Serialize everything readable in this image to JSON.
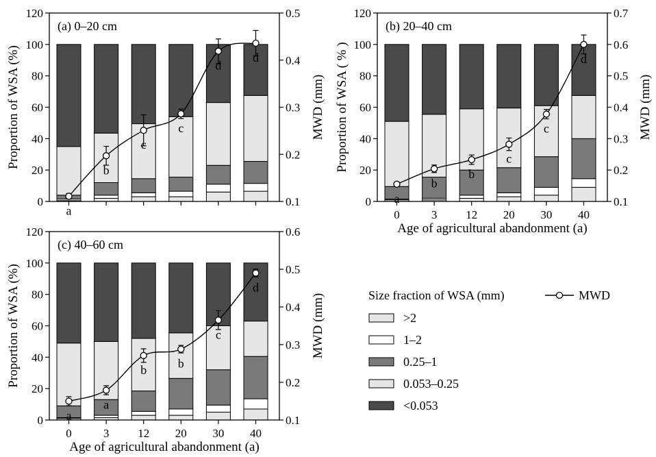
{
  "chart_data": [
    {
      "type": "bar",
      "panel_label": "(a) 0–20 cm",
      "categories": [
        "0",
        "3",
        "12",
        "20",
        "30",
        "40"
      ],
      "ylabel": "Proportion of WSA (%)",
      "ylabel_right": "MWD (mm)",
      "xlabel": "",
      "ylim": [
        0,
        120
      ],
      "yticks": [
        0,
        20,
        40,
        60,
        80,
        100,
        120
      ],
      "ylim_right": [
        0.1,
        0.5
      ],
      "yticks_right": [
        "0.1",
        "0.2",
        "0.3",
        "0.4",
        "0.5"
      ],
      "series": [
        {
          "name": ">2",
          "values": [
            0.5,
            2,
            3,
            3,
            6,
            6.5
          ]
        },
        {
          "name": "1–2",
          "values": [
            1,
            2,
            2.5,
            3.5,
            5,
            5
          ]
        },
        {
          "name": "0.25–1",
          "values": [
            2.5,
            8,
            9,
            9,
            12,
            14
          ]
        },
        {
          "name": "0.053–0.25",
          "values": [
            31,
            31.5,
            35,
            38.5,
            40,
            42
          ]
        },
        {
          "name": "<0.053",
          "values": [
            65,
            56.5,
            50.5,
            46,
            37,
            32.5
          ]
        }
      ],
      "line": {
        "name": "MWD",
        "values": [
          0.111,
          0.197,
          0.251,
          0.286,
          0.419,
          0.436
        ],
        "errors": [
          0.006,
          0.02,
          0.033,
          0.01,
          0.026,
          0.027
        ],
        "letters": [
          "a",
          "b",
          "c",
          "c",
          "d",
          "d"
        ]
      }
    },
    {
      "type": "bar",
      "panel_label": "(b) 20–40 cm",
      "categories": [
        "0",
        "3",
        "12",
        "20",
        "30",
        "40"
      ],
      "ylabel": "Proportion of WSA ( % )",
      "ylabel_right": "MWD (mm)",
      "xlabel": "Age of agricultural abandonment (a)",
      "ylim": [
        0,
        120
      ],
      "yticks": [
        0,
        20,
        40,
        60,
        80,
        100,
        120
      ],
      "ylim_right": [
        0.1,
        0.7
      ],
      "yticks_right": [
        "0.1",
        "0.2",
        "0.3",
        "0.4",
        "0.5",
        "0.6",
        "0.7"
      ],
      "series": [
        {
          "name": ">2",
          "values": [
            1,
            1,
            2,
            3,
            4,
            9
          ]
        },
        {
          "name": "1–2",
          "values": [
            0.5,
            1,
            2,
            2.5,
            5,
            5.5
          ]
        },
        {
          "name": "0.25–1",
          "values": [
            8,
            13.5,
            16,
            16,
            19.5,
            25.5
          ]
        },
        {
          "name": "0.053–0.25",
          "values": [
            41.5,
            40,
            39,
            38,
            32.5,
            27.5
          ]
        },
        {
          "name": "<0.053",
          "values": [
            49,
            44.5,
            41,
            40.5,
            39,
            32.5
          ]
        }
      ],
      "line": {
        "name": "MWD",
        "values": [
          0.155,
          0.204,
          0.233,
          0.282,
          0.378,
          0.6
        ],
        "errors": [
          0.007,
          0.012,
          0.015,
          0.02,
          0.015,
          0.03
        ],
        "letters": [
          "a",
          "b",
          "b",
          "c",
          "c",
          "d"
        ]
      }
    },
    {
      "type": "bar",
      "panel_label": "(c) 40–60 cm",
      "categories": [
        "0",
        "3",
        "12",
        "20",
        "30",
        "40"
      ],
      "ylabel": "Proportion of WSA (%)",
      "ylabel_right": "MWD (mm)",
      "xlabel": "Age of agricultural abandonment (a)",
      "ylim": [
        0,
        120
      ],
      "yticks": [
        0,
        20,
        40,
        60,
        80,
        100,
        120
      ],
      "ylim_right": [
        0.1,
        0.6
      ],
      "yticks_right": [
        "0.1",
        "0.2",
        "0.3",
        "0.4",
        "0.5",
        "0.6"
      ],
      "series": [
        {
          "name": ">2",
          "values": [
            1,
            1.5,
            3,
            3,
            5,
            7
          ]
        },
        {
          "name": "1–2",
          "values": [
            0.5,
            1.5,
            2.5,
            4,
            4.5,
            6.5
          ]
        },
        {
          "name": "0.25–1",
          "values": [
            7.5,
            10,
            13,
            19.5,
            22.5,
            27
          ]
        },
        {
          "name": "0.053–0.25",
          "values": [
            40,
            37,
            33.5,
            29,
            28,
            22.5
          ]
        },
        {
          "name": "<0.053",
          "values": [
            51,
            50,
            48,
            44.5,
            40,
            37
          ]
        }
      ],
      "line": {
        "name": "MWD",
        "values": [
          0.15,
          0.179,
          0.271,
          0.288,
          0.365,
          0.49
        ],
        "errors": [
          0.012,
          0.012,
          0.018,
          0.01,
          0.025,
          0.01
        ],
        "letters": [
          "a",
          "a",
          "b",
          "b",
          "c",
          "d"
        ]
      }
    }
  ],
  "legend": {
    "title": "Size fraction of WSA (mm)",
    "line_label": "MWD",
    "items": [
      {
        "label": ">2",
        "color": "#e6e6e6"
      },
      {
        "label": "1–2",
        "color": "#ffffff"
      },
      {
        "label": "0.25–1",
        "color": "#7a7a7a"
      },
      {
        "label": "0.053–0.25",
        "color": "#e6e6e6"
      },
      {
        "label": "<0.053",
        "color": "#4a4a4a"
      }
    ]
  },
  "colors": {
    "fraction_gt2": "#e6e6e6",
    "fraction_1_2": "#ffffff",
    "fraction_025_1": "#7a7a7a",
    "fraction_0053_025": "#e6e6e6",
    "fraction_lt0053": "#4a4a4a",
    "axis": "#000000"
  }
}
